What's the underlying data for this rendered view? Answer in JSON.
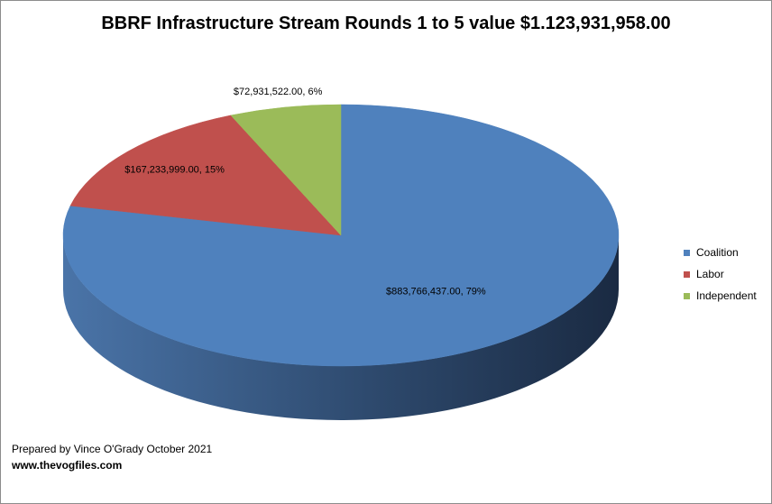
{
  "chart_data": {
    "type": "pie",
    "style": "3d",
    "title": "BBRF Infrastructure Stream Rounds 1 to 5 value $1.123,931,958.00",
    "categories": [
      "Coalition",
      "Labor",
      "Independent"
    ],
    "values": [
      883766437.0,
      167233999.0,
      72931522.0
    ],
    "percents": [
      79,
      15,
      6
    ],
    "data_labels": [
      "$883,766,437.00, 79%",
      "$167,233,999.00, 15%",
      "$72,931,522.00, 6%"
    ],
    "colors": [
      "#4f81bd",
      "#c0504d",
      "#9bbb59"
    ],
    "legend_position": "right"
  },
  "credits": {
    "prepared_by": "Prepared by Vince O'Grady October 2021",
    "website": "www.thevogfiles.com"
  }
}
